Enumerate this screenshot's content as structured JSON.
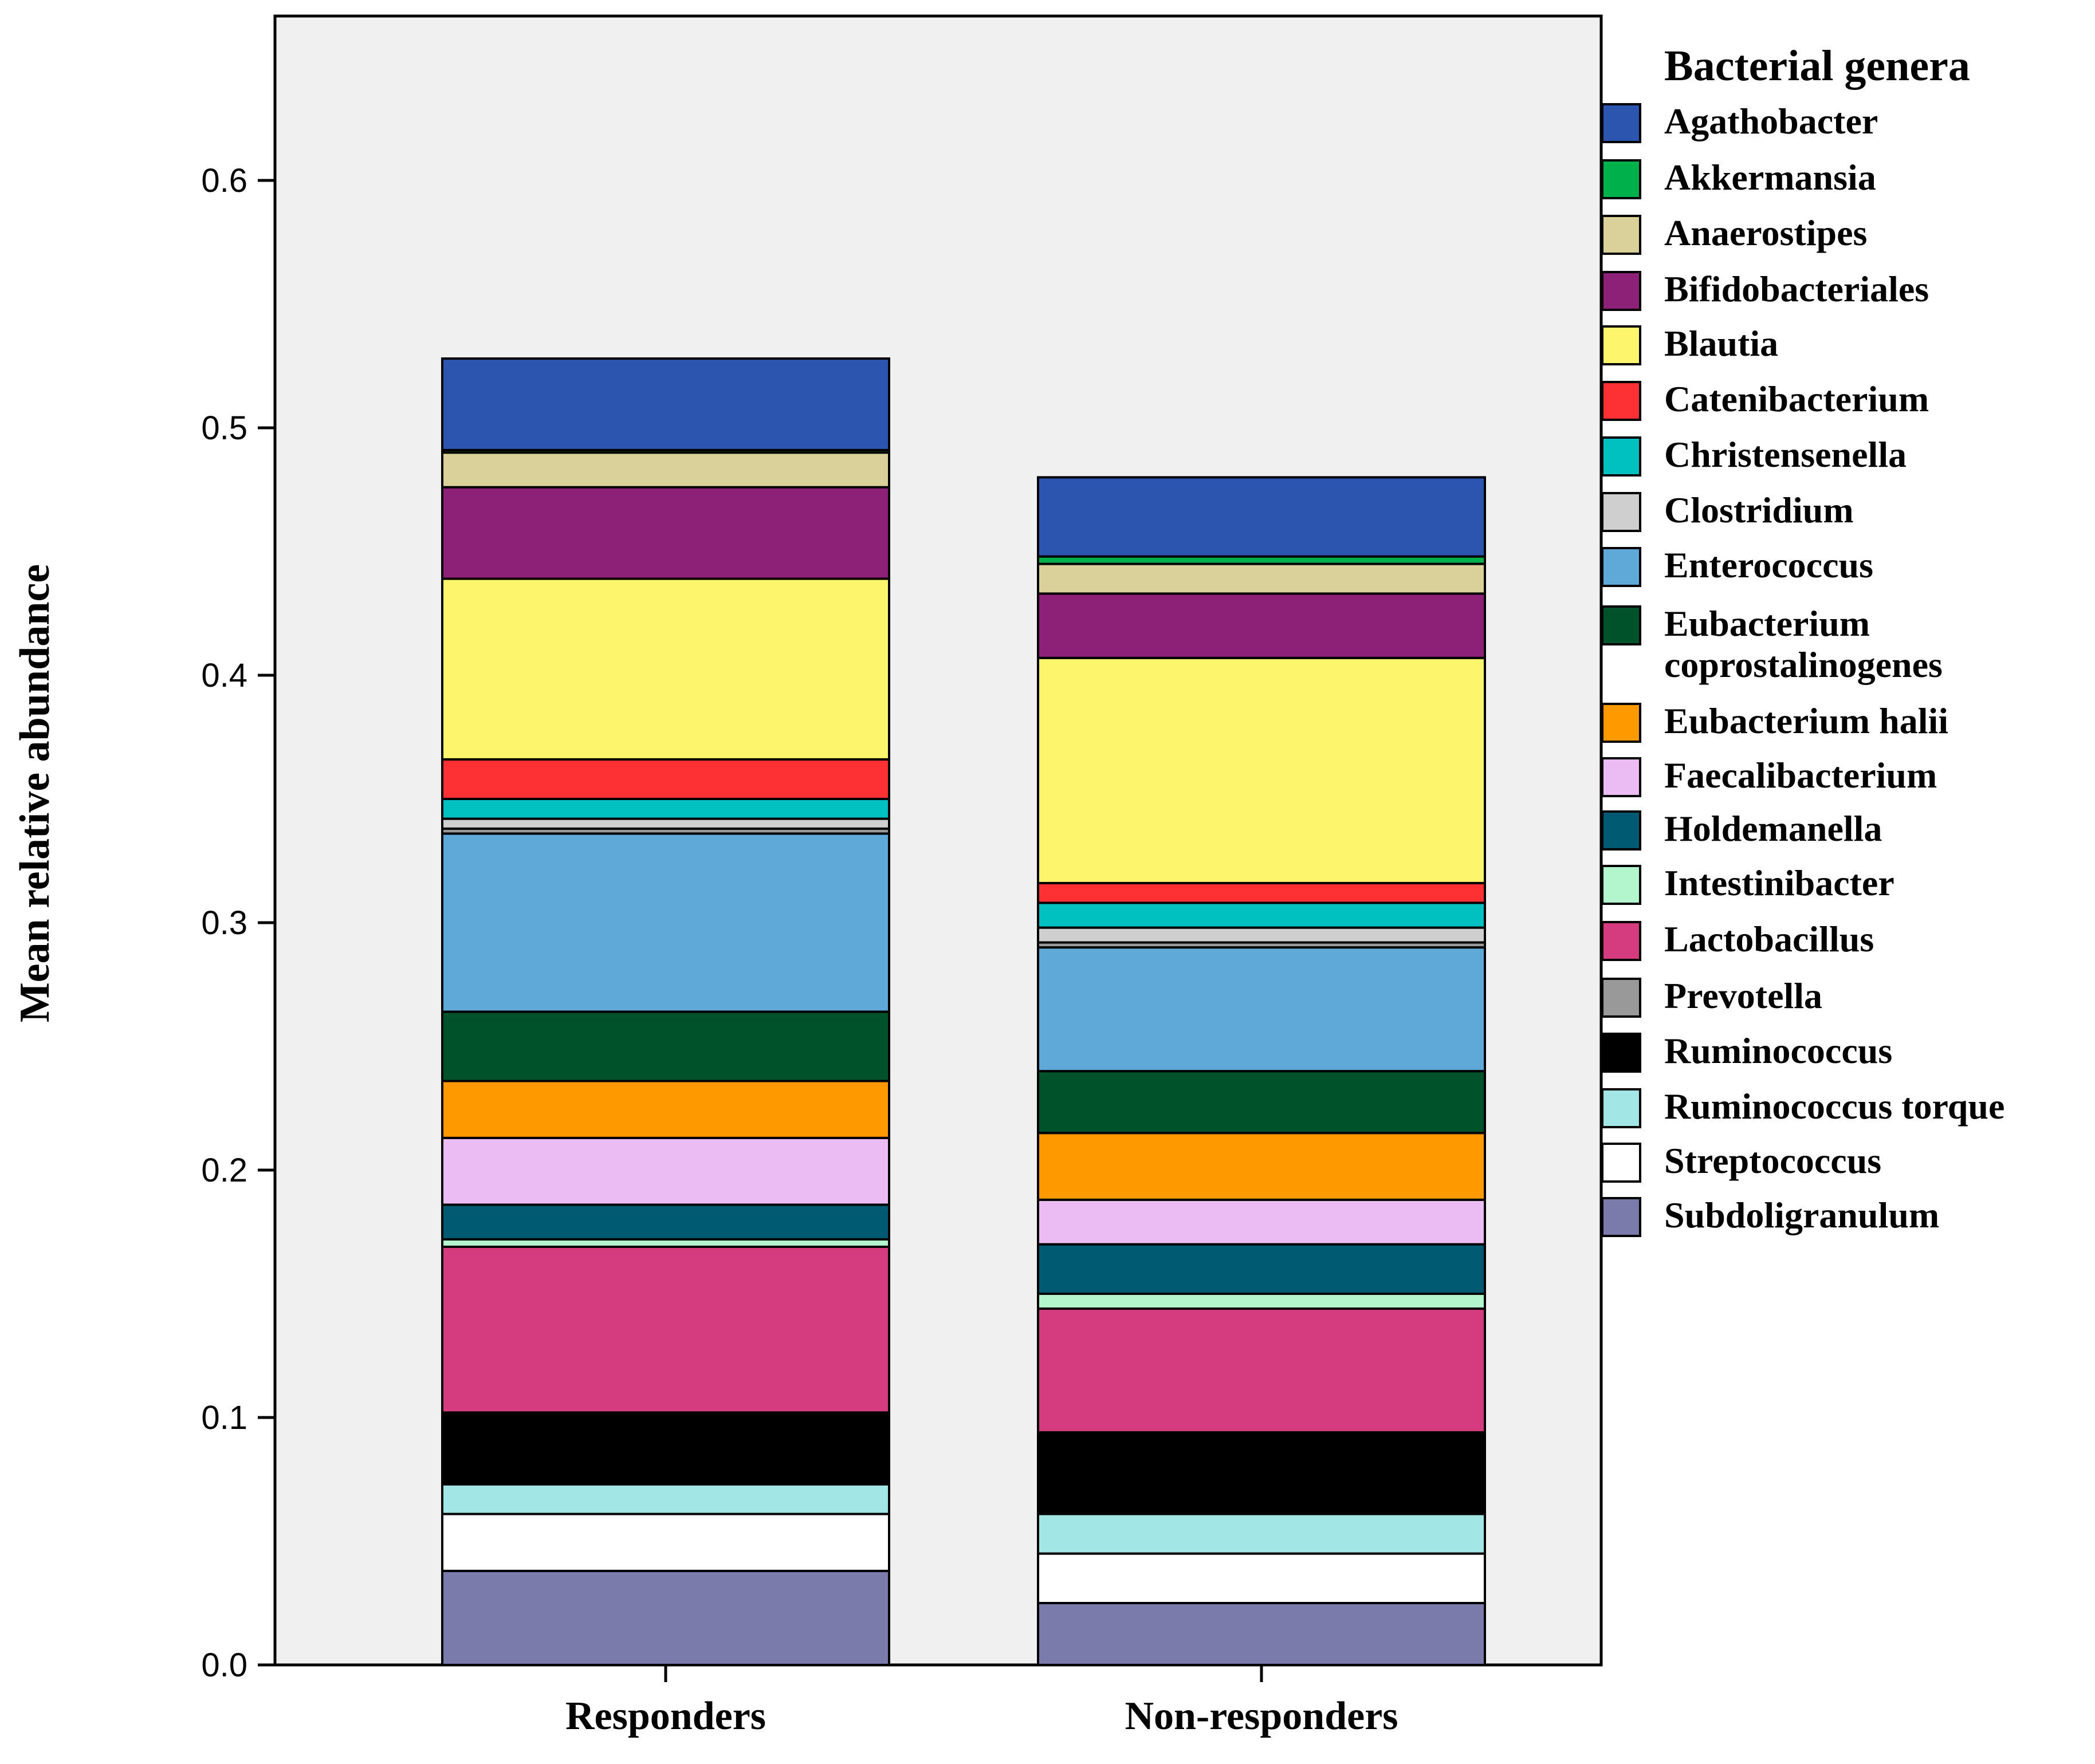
{
  "chart_data": {
    "type": "bar",
    "stacked": true,
    "title": "",
    "xlabel": "",
    "ylabel": "Mean relative abundance",
    "ylim": [
      0,
      0.667
    ],
    "yticks": [
      0.0,
      0.1,
      0.2,
      0.3,
      0.4,
      0.5,
      0.6
    ],
    "ytick_labels": [
      "0.0",
      "0.1",
      "0.2",
      "0.3",
      "0.4",
      "0.5",
      "0.6"
    ],
    "grid": false,
    "legend_title": "Bacterial genera",
    "legend_position": "right",
    "categories": [
      "Responders",
      "Non-responders"
    ],
    "series": [
      {
        "name": "Subdoligranulum",
        "color": "#7b7bab",
        "values": [
          0.038,
          0.025
        ]
      },
      {
        "name": "Streptococcus",
        "color": "#ffffff",
        "values": [
          0.023,
          0.02
        ]
      },
      {
        "name": "Ruminococcus torque",
        "color": "#a3e6e6",
        "values": [
          0.012,
          0.016
        ]
      },
      {
        "name": "Ruminococcus",
        "color": "#000000",
        "values": [
          0.029,
          0.033
        ]
      },
      {
        "name": "Lactobacillus",
        "color": "#d53c7f",
        "values": [
          0.067,
          0.05
        ]
      },
      {
        "name": "Intestinibacter",
        "color": "#b3f5cc",
        "values": [
          0.003,
          0.006
        ]
      },
      {
        "name": "Holdemanella",
        "color": "#005b72",
        "values": [
          0.014,
          0.02
        ]
      },
      {
        "name": "Faecalibacterium",
        "color": "#ebbbf3",
        "values": [
          0.027,
          0.018
        ]
      },
      {
        "name": "Eubacterium halii",
        "color": "#ff9900",
        "values": [
          0.023,
          0.027
        ]
      },
      {
        "name": "Eubacterium coprostalinogenes",
        "color": "#00522a",
        "values": [
          0.028,
          0.025
        ]
      },
      {
        "name": "Enterococcus",
        "color": "#5fa9d9",
        "values": [
          0.072,
          0.05
        ]
      },
      {
        "name": "Prevotella",
        "color": "#999999",
        "values": [
          0.002,
          0.002
        ]
      },
      {
        "name": "Clostridium",
        "color": "#cfcfcf",
        "values": [
          0.004,
          0.006
        ]
      },
      {
        "name": "Christensenella",
        "color": "#00c0c0",
        "values": [
          0.008,
          0.01
        ]
      },
      {
        "name": "Catenibacterium",
        "color": "#fd3134",
        "values": [
          0.016,
          0.008
        ]
      },
      {
        "name": "Blautia",
        "color": "#fdf56b",
        "values": [
          0.073,
          0.091
        ]
      },
      {
        "name": "Bifidobacteriales",
        "color": "#8d2077",
        "values": [
          0.037,
          0.026
        ]
      },
      {
        "name": "Anaerostipes",
        "color": "#d9d199",
        "values": [
          0.014,
          0.012
        ]
      },
      {
        "name": "Akkermansia",
        "color": "#00b14b",
        "values": [
          0.001,
          0.003
        ]
      },
      {
        "name": "Agathobacter",
        "color": "#2c55b0",
        "values": [
          0.037,
          0.032
        ]
      }
    ],
    "legend_entries": [
      {
        "label": "Agathobacter",
        "color": "#2c55b0"
      },
      {
        "label": "Akkermansia",
        "color": "#00b14b"
      },
      {
        "label": "Anaerostipes",
        "color": "#d9d199"
      },
      {
        "label": "Bifidobacteriales",
        "color": "#8d2077"
      },
      {
        "label": "Blautia",
        "color": "#fdf56b"
      },
      {
        "label": "Catenibacterium",
        "color": "#fd3134"
      },
      {
        "label": "Christensenella",
        "color": "#00c0c0"
      },
      {
        "label": "Clostridium",
        "color": "#cfcfcf"
      },
      {
        "label": "Enterococcus",
        "color": "#5fa9d9"
      },
      {
        "label": "Eubacterium coprostalinogenes",
        "lines": [
          "Eubacterium",
          "coprostalinogenes"
        ],
        "color": "#00522a"
      },
      {
        "label": "Eubacterium halii",
        "color": "#ff9900"
      },
      {
        "label": "Faecalibacterium",
        "color": "#ebbbf3"
      },
      {
        "label": "Holdemanella",
        "color": "#005b72"
      },
      {
        "label": "Intestinibacter",
        "color": "#b3f5cc"
      },
      {
        "label": "Lactobacillus",
        "color": "#d53c7f"
      },
      {
        "label": "Prevotella",
        "color": "#999999"
      },
      {
        "label": "Ruminococcus",
        "color": "#000000"
      },
      {
        "label": "Ruminococcus torque",
        "color": "#a3e6e6"
      },
      {
        "label": "Streptococcus",
        "color": "#ffffff"
      },
      {
        "label": "Subdoligranulum",
        "color": "#7b7bab"
      }
    ],
    "colors": {
      "plot_background": "#f0f0f0",
      "axis": "#000000"
    }
  }
}
